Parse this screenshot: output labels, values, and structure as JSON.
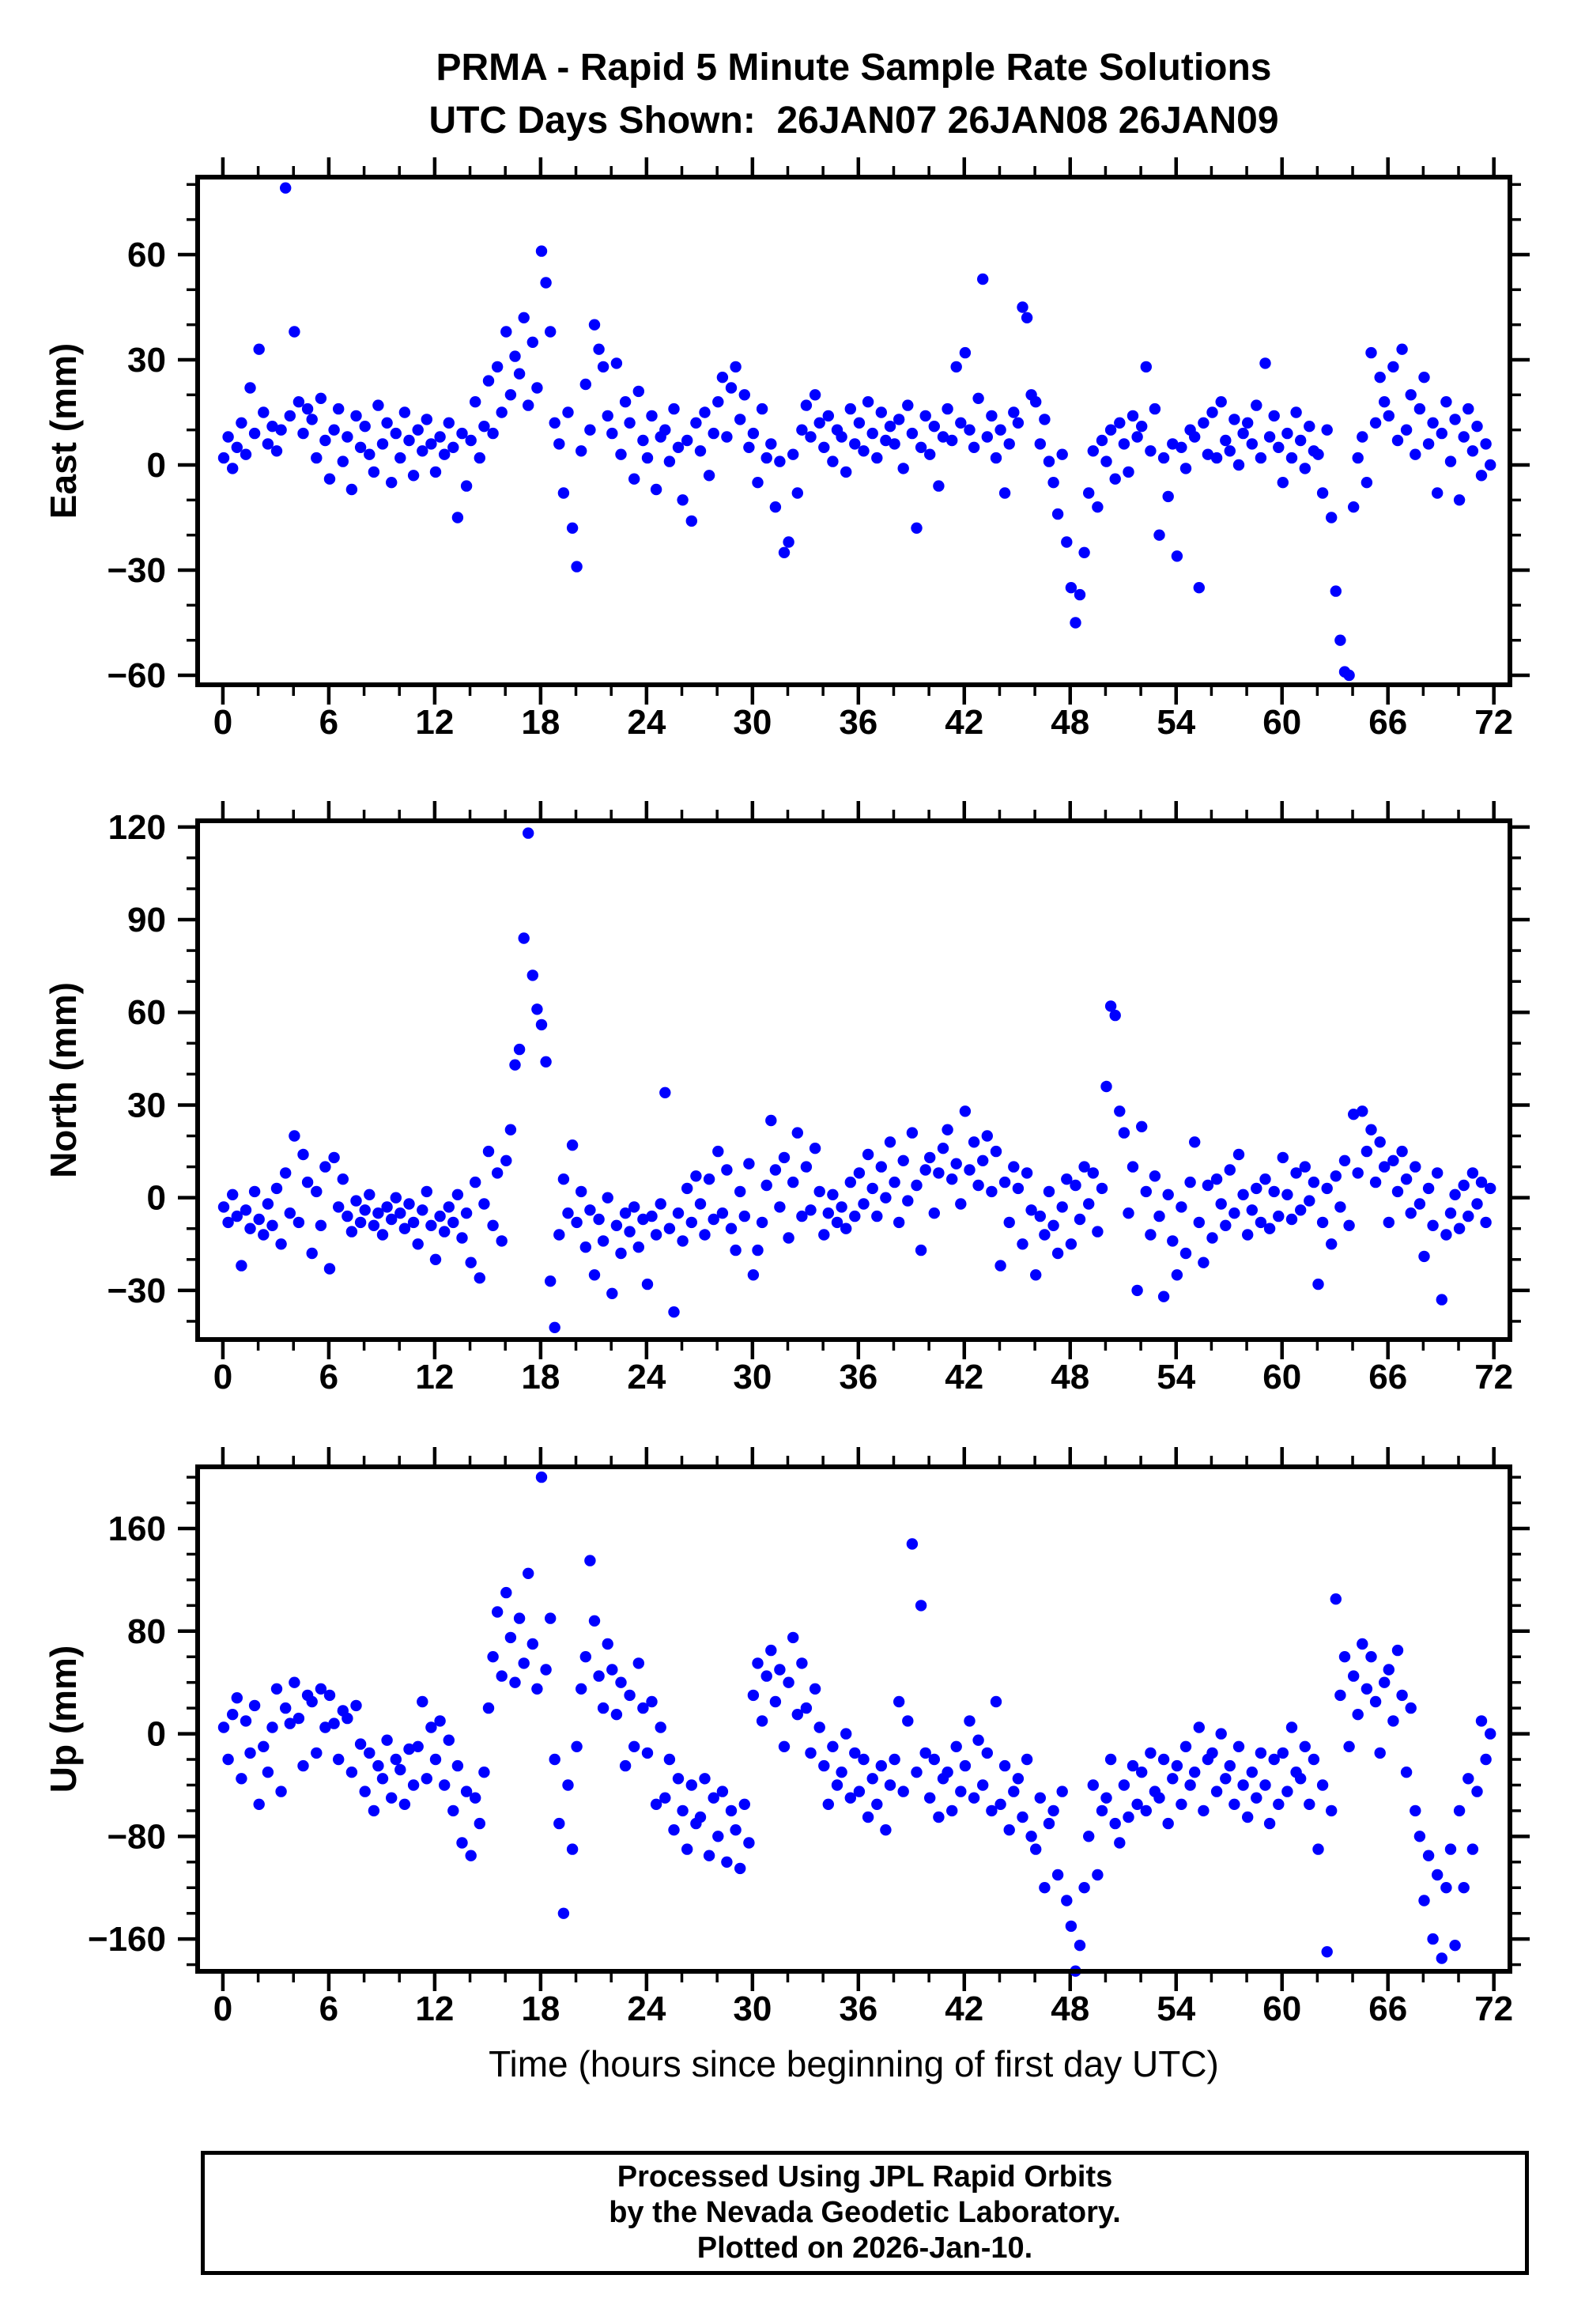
{
  "title": {
    "line1": "PRMA - Rapid 5 Minute Sample Rate Solutions",
    "line2": "UTC Days Shown:  26JAN07 26JAN08 26JAN09"
  },
  "xlabel": "Time (hours since beginning of first day UTC)",
  "footer": {
    "line1": "Processed Using JPL Rapid Orbits",
    "line2": "by the Nevada Geodetic Laboratory.",
    "line3": "Plotted on 2026-Jan-10."
  },
  "colors": {
    "marker": "#0000ff",
    "axis": "#000000",
    "text": "#000000",
    "background": "#ffffff"
  },
  "chart_data": [
    {
      "type": "scatter",
      "name": "east",
      "ylabel": "East (mm)",
      "xlim": [
        -1.43,
        72.91
      ],
      "ylim": [
        -62.7,
        82.1
      ],
      "xticks": [
        0,
        6,
        12,
        18,
        24,
        30,
        36,
        42,
        48,
        54,
        60,
        66,
        72
      ],
      "xtick_minor_step": 2,
      "yticks": [
        -60,
        -30,
        0,
        30,
        60
      ],
      "ytick_minor_step": 10,
      "x0": 0.05,
      "dx": 0.25,
      "y": [
        2,
        8,
        -1,
        5,
        12,
        3,
        22,
        9,
        33,
        15,
        6,
        11,
        4,
        10,
        79,
        14,
        38,
        18,
        9,
        16,
        13,
        2,
        19,
        7,
        -4,
        10,
        16,
        1,
        8,
        -7,
        14,
        5,
        11,
        3,
        -2,
        17,
        6,
        12,
        -5,
        9,
        2,
        15,
        7,
        -3,
        10,
        4,
        13,
        6,
        -2,
        8,
        3,
        12,
        5,
        -15,
        9,
        -6,
        7,
        18,
        2,
        11,
        24,
        9,
        28,
        15,
        38,
        20,
        31,
        26,
        42,
        17,
        35,
        22,
        61,
        52,
        38,
        12,
        6,
        -8,
        15,
        -18,
        -29,
        4,
        23,
        10,
        40,
        33,
        28,
        14,
        9,
        29,
        3,
        18,
        12,
        -4,
        21,
        7,
        2,
        14,
        -7,
        8,
        10,
        1,
        16,
        5,
        -10,
        7,
        -16,
        12,
        4,
        15,
        -3,
        9,
        18,
        25,
        8,
        22,
        28,
        13,
        20,
        5,
        9,
        -5,
        16,
        2,
        6,
        -12,
        1,
        -25,
        -22,
        3,
        -8,
        10,
        17,
        8,
        20,
        12,
        5,
        14,
        1,
        10,
        8,
        -2,
        16,
        6,
        12,
        4,
        18,
        9,
        2,
        15,
        7,
        11,
        6,
        13,
        -1,
        17,
        9,
        -18,
        5,
        14,
        3,
        11,
        -6,
        8,
        16,
        7,
        28,
        12,
        32,
        10,
        5,
        19,
        53,
        8,
        14,
        2,
        10,
        -8,
        6,
        15,
        12,
        45,
        42,
        20,
        18,
        6,
        13,
        1,
        -5,
        -14,
        3,
        -22,
        -35,
        -45,
        -37,
        -25,
        -8,
        4,
        -12,
        7,
        1,
        10,
        -4,
        12,
        6,
        -2,
        14,
        8,
        11,
        28,
        4,
        16,
        -20,
        2,
        -9,
        6,
        -26,
        5,
        -1,
        10,
        8,
        -35,
        12,
        3,
        15,
        2,
        18,
        7,
        4,
        13,
        0,
        9,
        12,
        6,
        17,
        2,
        29,
        8,
        14,
        5,
        -5,
        9,
        2,
        15,
        7,
        -1,
        11,
        4,
        3,
        -8,
        10,
        -15,
        -36,
        -50,
        -59,
        -60,
        -12,
        2,
        8,
        -5,
        32,
        12,
        25,
        18,
        14,
        28,
        7,
        33,
        10,
        20,
        3,
        16,
        25,
        6,
        12,
        -8,
        9,
        18,
        1,
        13,
        -10,
        8,
        16,
        4,
        11,
        -3,
        6,
        0
      ]
    },
    {
      "type": "scatter",
      "name": "north",
      "ylabel": "North (mm)",
      "xlim": [
        -1.43,
        72.91
      ],
      "ylim": [
        -45.9,
        122.0
      ],
      "xticks": [
        0,
        6,
        12,
        18,
        24,
        30,
        36,
        42,
        48,
        54,
        60,
        66,
        72
      ],
      "xtick_minor_step": 2,
      "yticks": [
        -30,
        0,
        30,
        60,
        90,
        120
      ],
      "ytick_minor_step": 10,
      "x0": 0.05,
      "dx": 0.25,
      "y": [
        -3,
        -8,
        1,
        -6,
        -22,
        -4,
        -10,
        2,
        -7,
        -12,
        -2,
        -9,
        3,
        -15,
        8,
        -5,
        20,
        -8,
        14,
        5,
        -18,
        2,
        -9,
        10,
        -23,
        13,
        -3,
        6,
        -6,
        -11,
        -1,
        -8,
        -4,
        1,
        -9,
        -5,
        -12,
        -3,
        -7,
        0,
        -5,
        -10,
        -2,
        -8,
        -15,
        -4,
        2,
        -9,
        -20,
        -6,
        -11,
        -3,
        -8,
        1,
        -13,
        -5,
        -21,
        5,
        -26,
        -2,
        15,
        -9,
        8,
        -14,
        12,
        22,
        43,
        48,
        84,
        118,
        72,
        61,
        56,
        44,
        -27,
        -42,
        -12,
        6,
        -5,
        17,
        -8,
        2,
        -16,
        -4,
        -25,
        -7,
        -14,
        0,
        -31,
        -9,
        -18,
        -5,
        -11,
        -3,
        -16,
        -7,
        -28,
        -6,
        -12,
        -2,
        34,
        -10,
        -37,
        -5,
        -14,
        3,
        -8,
        7,
        -2,
        -12,
        6,
        -7,
        15,
        -5,
        9,
        -10,
        -17,
        2,
        -6,
        11,
        -25,
        -17,
        -8,
        4,
        25,
        9,
        -3,
        13,
        -13,
        5,
        21,
        -6,
        10,
        -4,
        16,
        2,
        -12,
        -5,
        1,
        -8,
        -3,
        -10,
        5,
        -6,
        8,
        -2,
        14,
        3,
        -6,
        10,
        0,
        18,
        5,
        -8,
        12,
        -1,
        21,
        4,
        -17,
        9,
        13,
        -5,
        8,
        16,
        22,
        6,
        11,
        -2,
        28,
        9,
        18,
        4,
        12,
        20,
        2,
        15,
        -22,
        5,
        -8,
        10,
        3,
        -15,
        8,
        -4,
        -25,
        -6,
        -12,
        2,
        -9,
        -18,
        -3,
        6,
        -15,
        4,
        -7,
        10,
        -2,
        8,
        -11,
        3,
        36,
        62,
        59,
        28,
        21,
        -5,
        10,
        -30,
        23,
        2,
        -12,
        7,
        -6,
        -32,
        1,
        -14,
        -25,
        -3,
        -18,
        5,
        18,
        -8,
        -21,
        4,
        -13,
        6,
        -2,
        -9,
        9,
        -5,
        14,
        1,
        -12,
        -4,
        3,
        -8,
        6,
        -10,
        2,
        -6,
        13,
        1,
        -7,
        8,
        -4,
        10,
        -1,
        5,
        -28,
        -8,
        3,
        -15,
        7,
        -3,
        12,
        -9,
        27,
        8,
        28,
        15,
        22,
        5,
        18,
        10,
        -8,
        12,
        2,
        15,
        6,
        -5,
        10,
        -2,
        -19,
        3,
        -9,
        8,
        -33,
        -12,
        -5,
        1,
        -10,
        4,
        -6,
        8,
        -2,
        5,
        -8,
        3
      ]
    },
    {
      "type": "scatter",
      "name": "up",
      "ylabel": "Up (mm)",
      "xlim": [
        -1.43,
        72.91
      ],
      "ylim": [
        -185.2,
        208.1
      ],
      "xticks": [
        0,
        6,
        12,
        18,
        24,
        30,
        36,
        42,
        48,
        54,
        60,
        66,
        72
      ],
      "xtick_minor_step": 2,
      "yticks": [
        -160,
        -80,
        0,
        80,
        160
      ],
      "ytick_minor_step": 20,
      "x0": 0.05,
      "dx": 0.25,
      "y": [
        5,
        -20,
        15,
        28,
        -35,
        10,
        -15,
        22,
        -55,
        -10,
        -30,
        5,
        35,
        -45,
        20,
        8,
        40,
        12,
        -25,
        30,
        25,
        -15,
        35,
        5,
        30,
        8,
        -20,
        18,
        12,
        -30,
        22,
        -8,
        -45,
        -15,
        -60,
        -25,
        -35,
        -5,
        -50,
        -20,
        -28,
        -55,
        -12,
        -40,
        -10,
        25,
        -35,
        5,
        -20,
        10,
        -40,
        -5,
        -60,
        -25,
        -85,
        -45,
        -95,
        -50,
        -70,
        -30,
        20,
        60,
        95,
        45,
        110,
        75,
        40,
        90,
        55,
        125,
        70,
        35,
        200,
        50,
        90,
        -20,
        -70,
        -140,
        -40,
        -90,
        -10,
        35,
        60,
        135,
        88,
        45,
        20,
        70,
        50,
        15,
        40,
        -25,
        30,
        -10,
        55,
        20,
        -15,
        25,
        -55,
        5,
        -50,
        -20,
        -75,
        -35,
        -60,
        -90,
        -40,
        -70,
        -65,
        -35,
        -95,
        -50,
        -80,
        -45,
        -100,
        -60,
        -75,
        -105,
        -55,
        -85,
        30,
        55,
        10,
        45,
        65,
        25,
        50,
        -10,
        40,
        75,
        15,
        55,
        20,
        -15,
        35,
        5,
        -25,
        -55,
        -10,
        -40,
        -30,
        0,
        -50,
        -15,
        -45,
        -20,
        -65,
        -35,
        -55,
        -25,
        -75,
        -40,
        -20,
        25,
        -45,
        10,
        148,
        -30,
        100,
        -15,
        -50,
        -20,
        -65,
        -35,
        -30,
        -60,
        -10,
        -45,
        -25,
        10,
        -50,
        -5,
        -40,
        -15,
        -60,
        25,
        -55,
        -25,
        -75,
        -45,
        -35,
        -65,
        -20,
        -80,
        -90,
        -50,
        -120,
        -70,
        -60,
        -110,
        -45,
        -130,
        -150,
        -185,
        -165,
        -120,
        -80,
        -40,
        -110,
        -60,
        -50,
        -20,
        -70,
        -85,
        -40,
        -65,
        -25,
        -55,
        -30,
        -60,
        -15,
        -45,
        -50,
        -20,
        -70,
        -35,
        -25,
        -55,
        -10,
        -40,
        -30,
        5,
        -60,
        -20,
        -15,
        -45,
        0,
        -35,
        -25,
        -55,
        -10,
        -40,
        -65,
        -30,
        -50,
        -15,
        -40,
        -70,
        -20,
        -55,
        -15,
        -45,
        5,
        -30,
        -35,
        -10,
        -55,
        -20,
        -90,
        -40,
        -170,
        -60,
        105,
        30,
        60,
        -10,
        45,
        15,
        70,
        35,
        60,
        25,
        -15,
        40,
        50,
        10,
        65,
        30,
        -30,
        20,
        -60,
        -80,
        -130,
        -95,
        -160,
        -110,
        -175,
        -120,
        -90,
        -165,
        -60,
        -120,
        -35,
        -90,
        -45,
        10,
        -20,
        0
      ]
    }
  ]
}
